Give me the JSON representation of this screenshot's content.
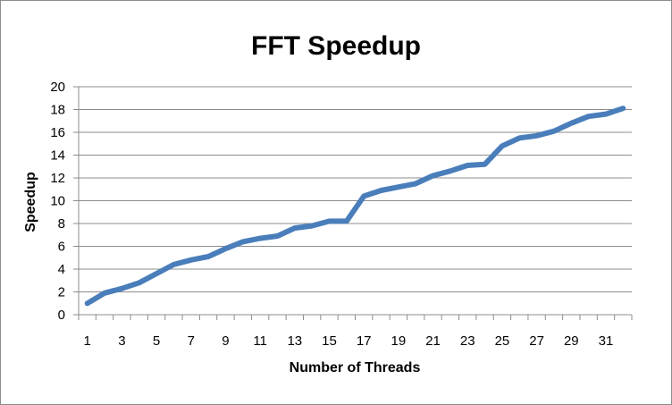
{
  "chart_data": {
    "type": "line",
    "title": "FFT Speedup",
    "xlabel": "Number of Threads",
    "ylabel": "Speedup",
    "ylim": [
      0,
      20
    ],
    "ytick_step": 2,
    "yticks": [
      "0",
      "2",
      "4",
      "6",
      "8",
      "10",
      "12",
      "14",
      "16",
      "18",
      "20"
    ],
    "xtick_labels": [
      "1",
      "3",
      "5",
      "7",
      "9",
      "11",
      "13",
      "15",
      "17",
      "19",
      "21",
      "23",
      "25",
      "27",
      "29",
      "31"
    ],
    "grid": "horizontal",
    "legend": "none",
    "line_color": "#4a7ebb",
    "x": [
      1,
      2,
      3,
      4,
      5,
      6,
      7,
      8,
      9,
      10,
      11,
      12,
      13,
      14,
      15,
      16,
      17,
      18,
      19,
      20,
      21,
      22,
      23,
      24,
      25,
      26,
      27,
      28,
      29,
      30,
      31,
      32
    ],
    "series": [
      {
        "values": [
          1.0,
          1.9,
          2.3,
          2.8,
          3.6,
          4.4,
          4.8,
          5.1,
          5.8,
          6.4,
          6.7,
          6.9,
          7.6,
          7.8,
          8.2,
          8.2,
          10.4,
          10.9,
          11.2,
          11.5,
          12.2,
          12.6,
          13.1,
          13.2,
          14.8,
          15.5,
          15.7,
          16.1,
          16.8,
          17.4,
          17.6,
          18.1
        ]
      }
    ]
  }
}
